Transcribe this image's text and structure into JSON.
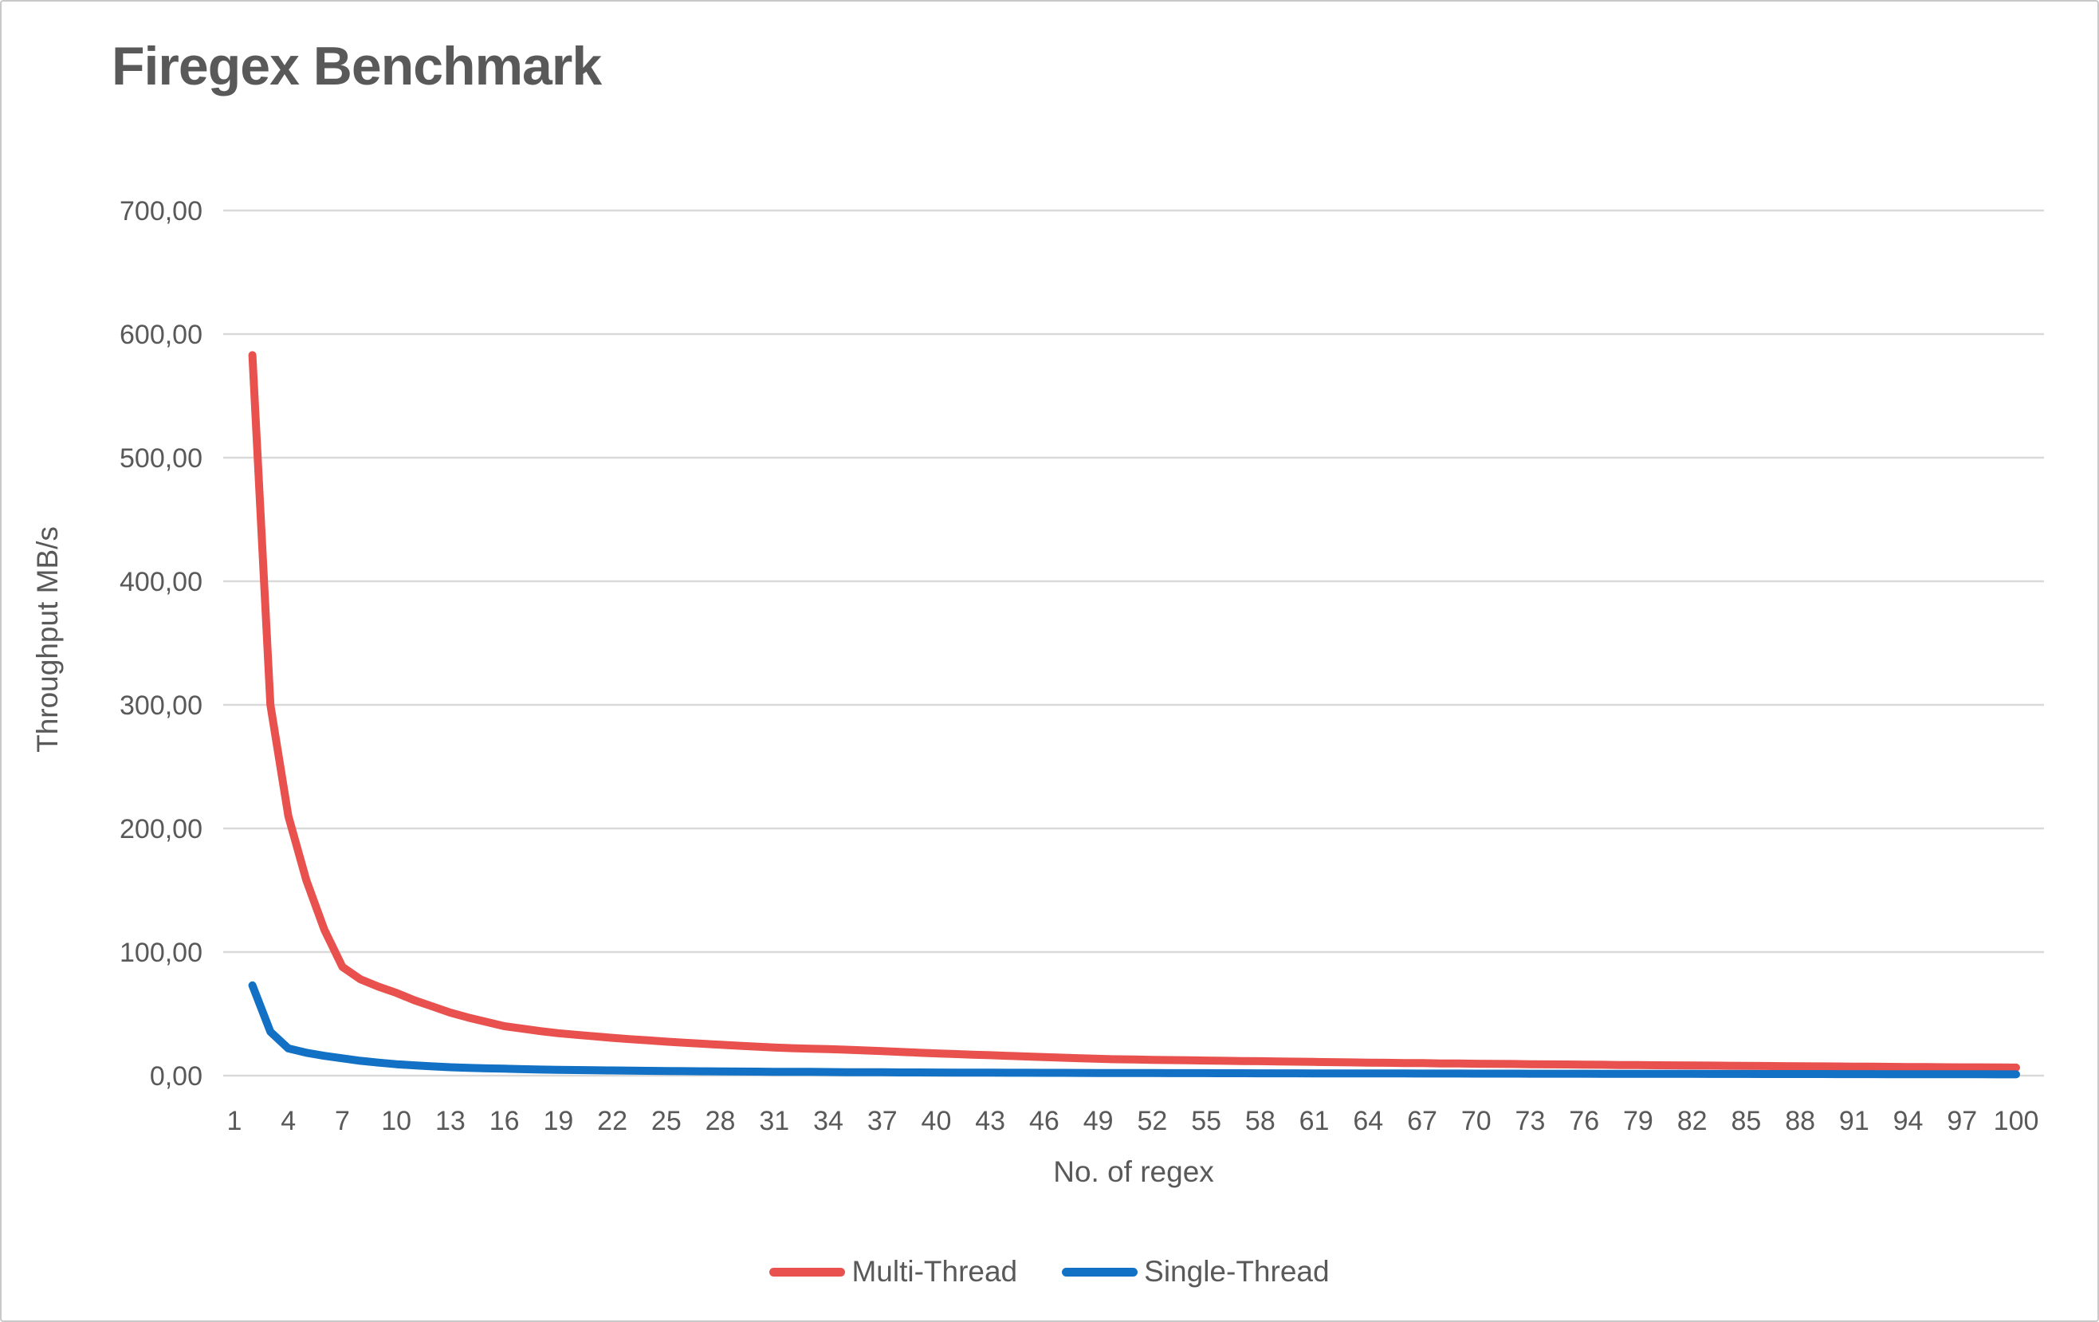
{
  "chart": {
    "title": "Firegex Benchmark",
    "y_axis": {
      "title": "Throughput MB/s",
      "tick_labels": [
        "0,00",
        "100,00",
        "200,00",
        "300,00",
        "400,00",
        "500,00",
        "600,00",
        "700,00"
      ]
    },
    "x_axis": {
      "title": "No. of regex",
      "tick_labels": [
        1,
        4,
        7,
        10,
        13,
        16,
        19,
        22,
        25,
        28,
        31,
        34,
        37,
        40,
        43,
        46,
        49,
        52,
        55,
        58,
        61,
        64,
        67,
        70,
        73,
        76,
        79,
        82,
        85,
        88,
        91,
        94,
        97,
        100
      ]
    },
    "colors": {
      "multi_thread": "#E8514D",
      "single_thread": "#1271C4",
      "gridline": "#D9D9D9",
      "text": "#595959"
    }
  },
  "chart_data": {
    "type": "line",
    "title": "Firegex Benchmark",
    "xlabel": "No. of regex",
    "ylabel": "Throughput MB/s",
    "ylim": [
      0,
      700
    ],
    "y_tick_step": 100,
    "x_tick_step": 3,
    "grid": true,
    "legend_position": "bottom",
    "x": [
      2,
      3,
      4,
      5,
      6,
      7,
      8,
      9,
      10,
      11,
      12,
      13,
      14,
      15,
      16,
      17,
      18,
      19,
      20,
      21,
      22,
      23,
      24,
      25,
      26,
      27,
      28,
      29,
      30,
      31,
      32,
      33,
      34,
      35,
      36,
      37,
      38,
      39,
      40,
      41,
      42,
      43,
      44,
      45,
      46,
      47,
      48,
      49,
      50,
      51,
      52,
      53,
      54,
      55,
      56,
      57,
      58,
      59,
      60,
      61,
      62,
      63,
      64,
      65,
      66,
      67,
      68,
      69,
      70,
      71,
      72,
      73,
      74,
      75,
      76,
      77,
      78,
      79,
      80,
      81,
      82,
      83,
      84,
      85,
      86,
      87,
      88,
      89,
      90,
      91,
      92,
      93,
      94,
      95,
      96,
      97,
      98,
      99,
      100
    ],
    "series": [
      {
        "name": "Multi-Thread",
        "color": "#E8514D",
        "values": [
          583,
          300,
          210,
          158,
          118,
          88,
          78,
          72,
          67,
          61,
          56,
          51,
          47,
          43.5,
          40,
          38,
          36,
          34.3,
          33,
          31.8,
          30.6,
          29.5,
          28.5,
          27.5,
          26.6,
          25.8,
          25,
          24.2,
          23.5,
          22.8,
          22.2,
          21.8,
          21.4,
          21,
          20.4,
          19.8,
          19.2,
          18.6,
          18,
          17.5,
          17,
          16.5,
          16,
          15.5,
          15,
          14.5,
          14,
          13.6,
          13.2,
          13,
          12.8,
          12.6,
          12.4,
          12.2,
          12,
          11.8,
          11.7,
          11.5,
          11.3,
          11.1,
          10.9,
          10.7,
          10.5,
          10.4,
          10.2,
          10.1,
          9.9,
          9.8,
          9.6,
          9.5,
          9.4,
          9.2,
          9.1,
          9,
          8.9,
          8.8,
          8.6,
          8.5,
          8.4,
          8.3,
          8.2,
          8.1,
          8,
          7.9,
          7.8,
          7.7,
          7.6,
          7.5,
          7.4,
          7.3,
          7.2,
          7.1,
          7,
          6.9,
          6.8,
          6.7,
          6.7,
          6.6,
          6.5
        ]
      },
      {
        "name": "Single-Thread",
        "color": "#1271C4",
        "values": [
          73,
          35.5,
          22,
          18.5,
          16,
          14,
          12,
          10.5,
          9.2,
          8.3,
          7.5,
          6.8,
          6.3,
          5.9,
          5.6,
          5.2,
          4.9,
          4.7,
          4.5,
          4.35,
          4.2,
          4.05,
          3.9,
          3.75,
          3.6,
          3.5,
          3.4,
          3.3,
          3.2,
          3.1,
          3.05,
          3,
          2.9,
          2.8,
          2.75,
          2.7,
          2.6,
          2.55,
          2.5,
          2.45,
          2.4,
          2.38,
          2.35,
          2.3,
          2.28,
          2.25,
          2.2,
          2.15,
          2.1,
          2.08,
          2.05,
          2.02,
          2,
          1.98,
          1.95,
          1.92,
          1.9,
          1.88,
          1.85,
          1.82,
          1.8,
          1.78,
          1.76,
          1.74,
          1.72,
          1.7,
          1.68,
          1.66,
          1.64,
          1.62,
          1.6,
          1.58,
          1.56,
          1.54,
          1.52,
          1.5,
          1.48,
          1.46,
          1.44,
          1.42,
          1.4,
          1.38,
          1.36,
          1.34,
          1.32,
          1.3,
          1.28,
          1.26,
          1.24,
          1.22,
          1.2,
          1.18,
          1.16,
          1.14,
          1.12,
          1.1,
          1.08,
          1.06,
          1.05
        ]
      }
    ]
  }
}
